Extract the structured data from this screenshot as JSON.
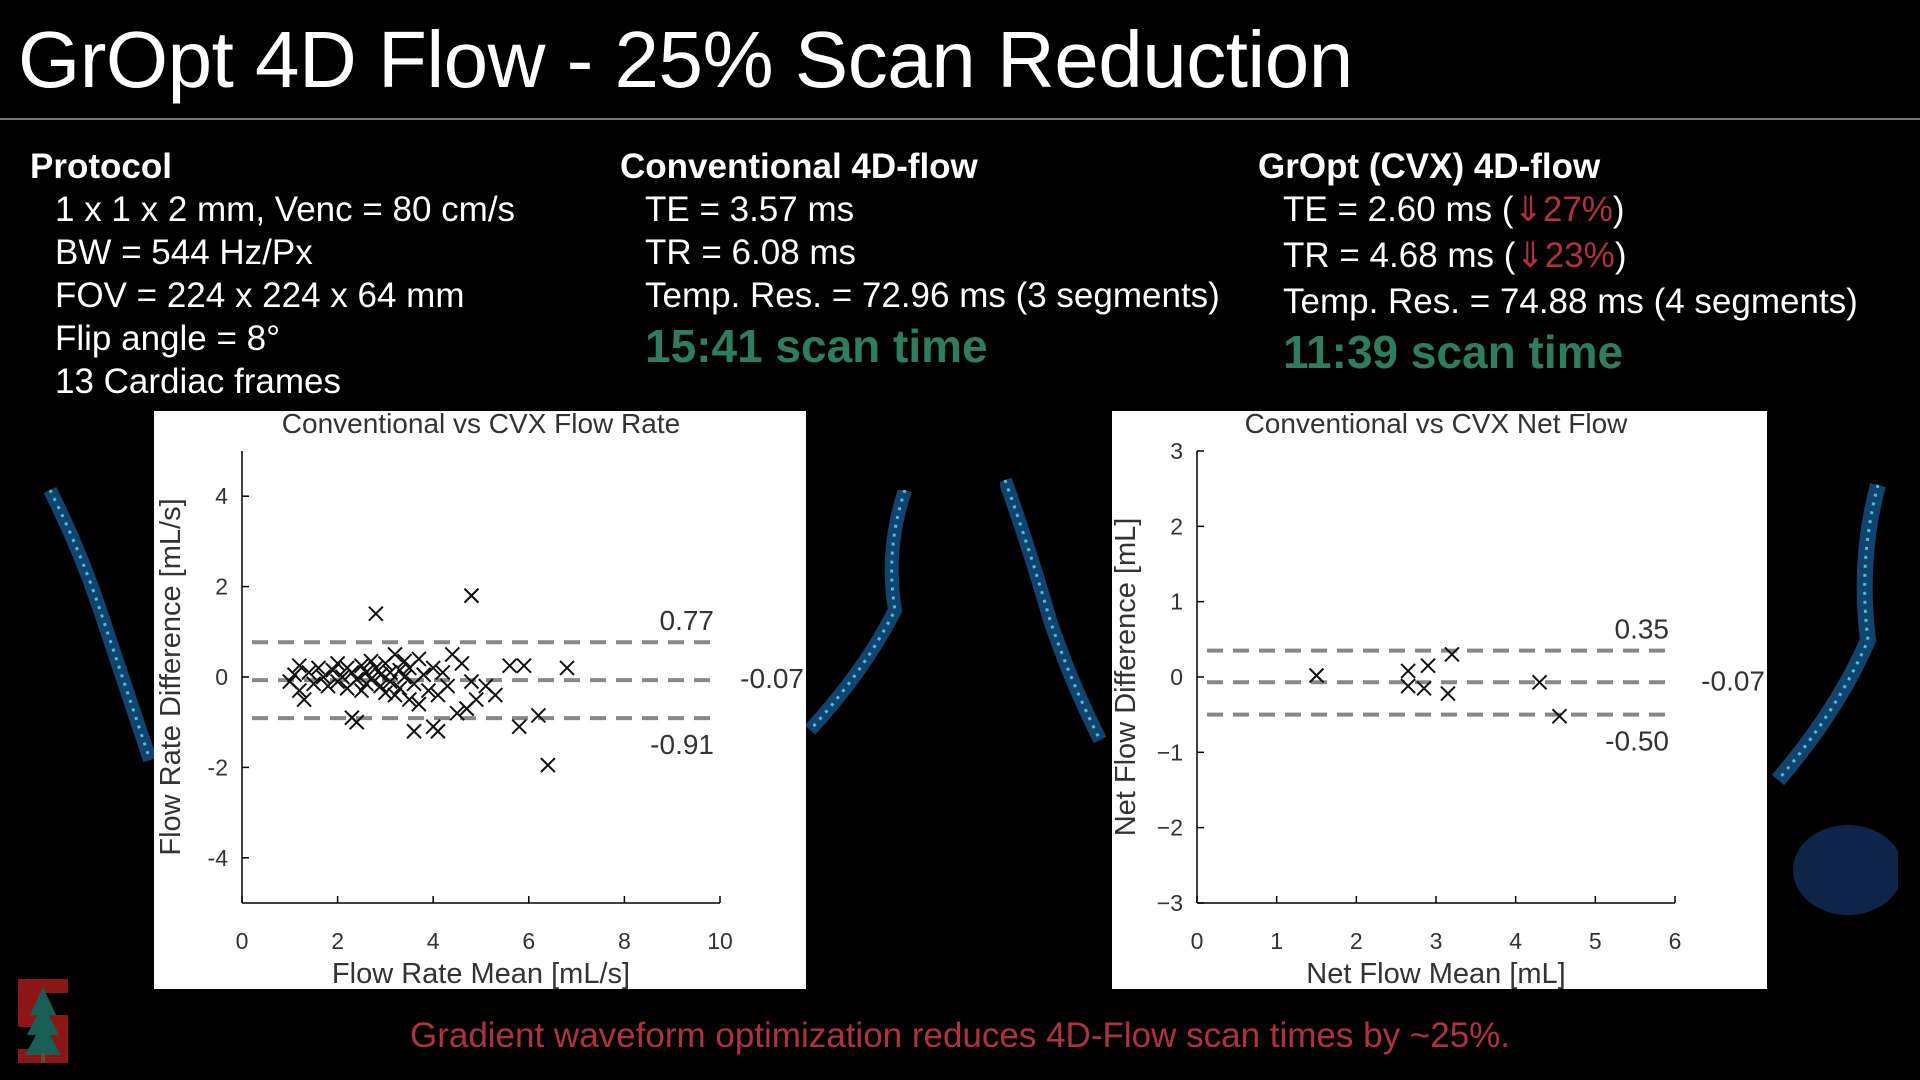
{
  "title": "GrOpt 4D Flow - 25% Scan Reduction",
  "protocol": {
    "heading": "Protocol",
    "lines": [
      "1 x 1 x 2 mm, Venc = 80 cm/s",
      "BW = 544 Hz/Px",
      "FOV = 224 x 224 x 64 mm",
      "Flip angle = 8°",
      "13 Cardiac frames"
    ]
  },
  "conventional": {
    "heading": "Conventional 4D-flow",
    "te": "TE = 3.57 ms",
    "tr": "TR = 6.08 ms",
    "temp_res": "Temp. Res. = 72.96 ms (3 segments)",
    "scan_time": "15:41 scan time"
  },
  "gropt": {
    "heading": "GrOpt (CVX) 4D-flow",
    "te_prefix": "TE = 2.60 ms (",
    "te_change": "⇓27%",
    "tr_prefix": "TR = 4.68 ms (",
    "tr_change": "⇓23%",
    "close_paren": ")",
    "temp_res": "Temp. Res. = 74.88 ms (4 segments)",
    "scan_time": "11:39 scan time"
  },
  "footer": "Gradient waveform optimization reduces 4D-Flow scan times by ~25%.",
  "colors": {
    "accent_green": "#2e7d5e",
    "accent_red": "#b0323f"
  },
  "chart_data": [
    {
      "type": "scatter",
      "title": "Conventional vs CVX Flow Rate",
      "xlabel": "Flow Rate Mean [mL/s]",
      "ylabel": "Flow Rate Difference [mL/s]",
      "xlim": [
        0,
        10
      ],
      "ylim": [
        -5,
        5
      ],
      "xticks": [
        0,
        2,
        4,
        6,
        8,
        10
      ],
      "yticks": [
        -4,
        -2,
        0,
        2,
        4
      ],
      "hlines": [
        {
          "value": 0.77,
          "label": "0.77"
        },
        {
          "value": -0.07,
          "label": "-0.07"
        },
        {
          "value": -0.91,
          "label": "-0.91"
        }
      ],
      "points": [
        [
          1.0,
          -0.1
        ],
        [
          1.1,
          0.05
        ],
        [
          1.2,
          -0.3
        ],
        [
          1.2,
          0.25
        ],
        [
          1.3,
          -0.5
        ],
        [
          1.4,
          0.1
        ],
        [
          1.5,
          -0.15
        ],
        [
          1.6,
          0.2
        ],
        [
          1.7,
          0.0
        ],
        [
          1.8,
          -0.2
        ],
        [
          1.9,
          0.15
        ],
        [
          2.0,
          -0.1
        ],
        [
          2.0,
          0.3
        ],
        [
          2.1,
          0.0
        ],
        [
          2.2,
          -0.25
        ],
        [
          2.2,
          0.2
        ],
        [
          2.3,
          0.1
        ],
        [
          2.3,
          -0.9
        ],
        [
          2.4,
          -0.05
        ],
        [
          2.4,
          -1.0
        ],
        [
          2.5,
          0.25
        ],
        [
          2.5,
          -0.3
        ],
        [
          2.6,
          0.1
        ],
        [
          2.6,
          -0.15
        ],
        [
          2.7,
          0.35
        ],
        [
          2.7,
          -0.05
        ],
        [
          2.8,
          1.4
        ],
        [
          2.8,
          0.2
        ],
        [
          2.9,
          -0.2
        ],
        [
          2.9,
          0.05
        ],
        [
          3.0,
          0.3
        ],
        [
          3.0,
          -0.35
        ],
        [
          3.1,
          0.1
        ],
        [
          3.1,
          -0.1
        ],
        [
          3.2,
          0.5
        ],
        [
          3.2,
          -0.4
        ],
        [
          3.3,
          0.15
        ],
        [
          3.3,
          -0.25
        ],
        [
          3.4,
          0.0
        ],
        [
          3.4,
          0.35
        ],
        [
          3.5,
          -0.5
        ],
        [
          3.5,
          0.2
        ],
        [
          3.6,
          -0.15
        ],
        [
          3.6,
          -1.2
        ],
        [
          3.7,
          0.4
        ],
        [
          3.7,
          -0.6
        ],
        [
          3.8,
          0.05
        ],
        [
          3.9,
          -0.3
        ],
        [
          4.0,
          0.2
        ],
        [
          4.0,
          -1.1
        ],
        [
          4.1,
          -1.2
        ],
        [
          4.1,
          -0.4
        ],
        [
          4.2,
          0.1
        ],
        [
          4.3,
          -0.2
        ],
        [
          4.4,
          0.5
        ],
        [
          4.5,
          -0.8
        ],
        [
          4.6,
          0.3
        ],
        [
          4.7,
          -0.7
        ],
        [
          4.8,
          1.8
        ],
        [
          4.8,
          -0.1
        ],
        [
          4.9,
          -0.5
        ],
        [
          5.1,
          -0.2
        ],
        [
          5.3,
          -0.4
        ],
        [
          5.6,
          0.25
        ],
        [
          5.8,
          -1.1
        ],
        [
          5.9,
          0.25
        ],
        [
          6.2,
          -0.85
        ],
        [
          6.4,
          -1.95
        ],
        [
          6.8,
          0.2
        ]
      ]
    },
    {
      "type": "scatter",
      "title": "Conventional vs CVX Net Flow",
      "xlabel": "Net Flow Mean [mL]",
      "ylabel": "Net Flow Difference [mL]",
      "xlim": [
        0,
        6
      ],
      "ylim": [
        -3,
        3
      ],
      "xticks": [
        0,
        1,
        2,
        3,
        4,
        5,
        6
      ],
      "yticks": [
        -3,
        -2,
        -1,
        0,
        1,
        2,
        3
      ],
      "ytick_labels": [
        "−3",
        "−2",
        "−1",
        "0",
        "1",
        "2",
        "3"
      ],
      "hlines": [
        {
          "value": 0.35,
          "label": "0.35"
        },
        {
          "value": -0.07,
          "label": "-0.07"
        },
        {
          "value": -0.5,
          "label": "-0.50"
        }
      ],
      "points": [
        [
          1.5,
          0.02
        ],
        [
          2.65,
          0.08
        ],
        [
          2.65,
          -0.12
        ],
        [
          2.85,
          -0.15
        ],
        [
          2.9,
          0.15
        ],
        [
          3.15,
          -0.22
        ],
        [
          3.2,
          0.3
        ],
        [
          4.3,
          -0.07
        ],
        [
          4.55,
          -0.52
        ]
      ]
    }
  ]
}
